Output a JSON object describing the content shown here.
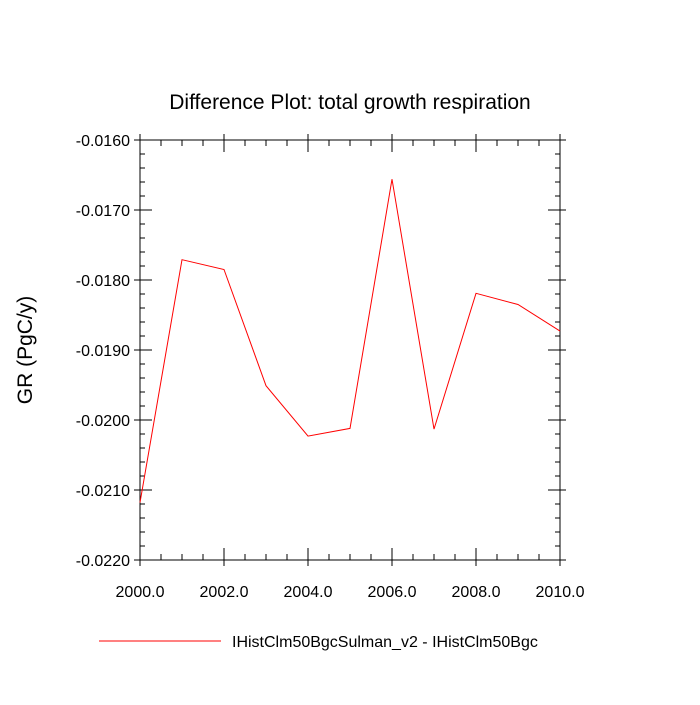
{
  "chart_data": {
    "type": "line",
    "title": "Difference Plot: total growth respiration",
    "xlabel": "",
    "ylabel": "GR  (PgC/y)",
    "xlim": [
      2000.0,
      2010.0
    ],
    "ylim": [
      -0.022,
      -0.016
    ],
    "x_ticks": [
      2000.0,
      2002.0,
      2004.0,
      2006.0,
      2008.0,
      2010.0
    ],
    "x_tick_labels": [
      "2000.0",
      "2002.0",
      "2004.0",
      "2006.0",
      "2008.0",
      "2010.0"
    ],
    "y_ticks": [
      -0.016,
      -0.017,
      -0.018,
      -0.019,
      -0.02,
      -0.021,
      -0.022
    ],
    "y_tick_labels": [
      "-0.0160",
      "-0.0170",
      "-0.0180",
      "-0.0190",
      "-0.0200",
      "-0.0210",
      "-0.0220"
    ],
    "x": [
      2000,
      2001,
      2002,
      2003,
      2004,
      2005,
      2006,
      2007,
      2008,
      2009,
      2010
    ],
    "series": [
      {
        "name": "IHistClm50BgcSulman_v2 - IHistClm50Bgc",
        "color": "#ff0000",
        "values": [
          -0.02118,
          -0.01771,
          -0.01785,
          -0.01951,
          -0.02023,
          -0.02012,
          -0.01656,
          -0.02013,
          -0.01819,
          -0.01835,
          -0.01873
        ]
      }
    ],
    "grid": false,
    "legend_position": "bottom"
  }
}
